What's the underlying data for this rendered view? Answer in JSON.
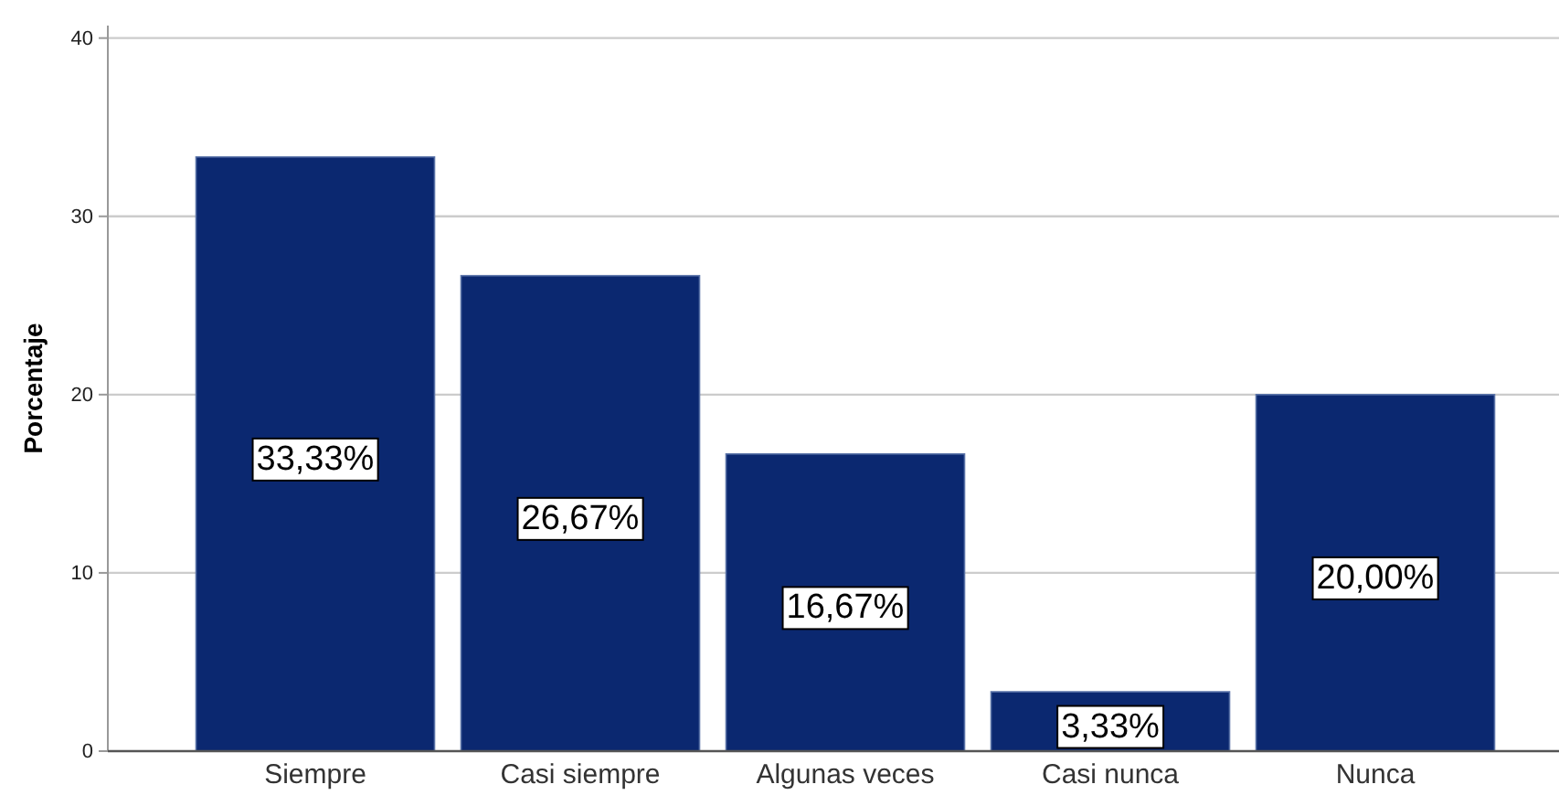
{
  "chart_data": {
    "type": "bar",
    "ylabel": "Porcentaje",
    "categories": [
      "Siempre",
      "Casi siempre",
      "Algunas veces",
      "Casi nunca",
      "Nunca"
    ],
    "values": [
      33.33,
      26.67,
      16.67,
      3.33,
      20.0
    ],
    "value_labels": [
      "33,33%",
      "26,67%",
      "16,67%",
      "3,33%",
      "20,00%"
    ],
    "color": "#0b2870",
    "ylim": [
      0,
      40.7
    ],
    "yticks": [
      0,
      10,
      20,
      30,
      40
    ],
    "grid": "y"
  }
}
